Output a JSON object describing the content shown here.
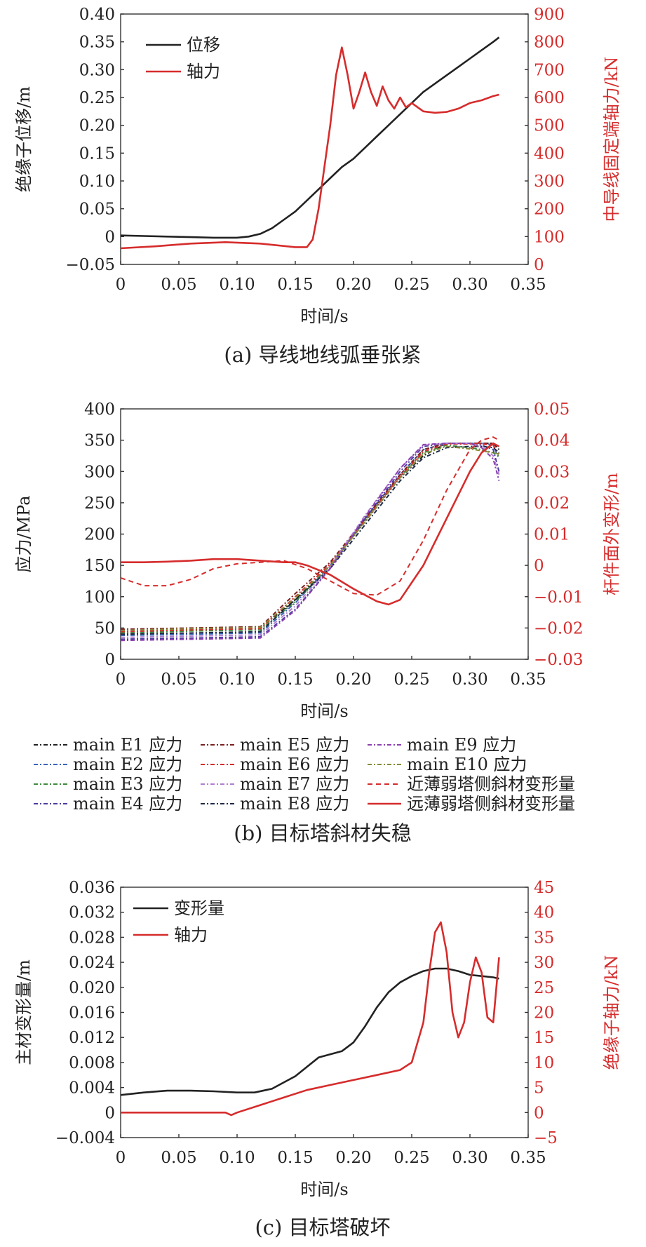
{
  "chart_data": [
    {
      "type": "line",
      "caption": "(a) 导线地线弧垂张紧",
      "xlabel": "时间/s",
      "ylabel": "绝缘子位移/m",
      "y2label": "中导线固定端轴力/kN",
      "xlim": [
        0,
        0.35
      ],
      "ylim": [
        -0.05,
        0.4
      ],
      "y2lim": [
        0,
        900
      ],
      "xticks": [
        "0",
        "0.05",
        "0.10",
        "0.15",
        "0.20",
        "0.25",
        "0.30",
        "0.35"
      ],
      "yticks": [
        "−0.05",
        "0",
        "0.05",
        "0.10",
        "0.15",
        "0.20",
        "0.25",
        "0.30",
        "0.35",
        "0.40"
      ],
      "y2ticks": [
        "0",
        "100",
        "200",
        "300",
        "400",
        "500",
        "600",
        "700",
        "800",
        "900"
      ],
      "grid": false,
      "legend_position": "top-left",
      "series": [
        {
          "name": "位移",
          "axis": "left",
          "color": "#222222",
          "dash": "",
          "x": [
            0,
            0.02,
            0.04,
            0.06,
            0.08,
            0.1,
            0.11,
            0.12,
            0.13,
            0.14,
            0.15,
            0.16,
            0.17,
            0.18,
            0.19,
            0.2,
            0.21,
            0.22,
            0.23,
            0.24,
            0.25,
            0.26,
            0.27,
            0.28,
            0.29,
            0.3,
            0.31,
            0.32,
            0.325
          ],
          "y": [
            0.002,
            0.001,
            0.0,
            -0.001,
            -0.002,
            -0.002,
            0.0,
            0.005,
            0.015,
            0.03,
            0.045,
            0.065,
            0.085,
            0.105,
            0.125,
            0.14,
            0.16,
            0.18,
            0.2,
            0.22,
            0.24,
            0.26,
            0.275,
            0.29,
            0.305,
            0.32,
            0.335,
            0.35,
            0.358
          ]
        },
        {
          "name": "轴力",
          "axis": "right",
          "color": "#d62c2c",
          "dash": "",
          "x": [
            0,
            0.03,
            0.06,
            0.09,
            0.12,
            0.15,
            0.16,
            0.165,
            0.17,
            0.175,
            0.18,
            0.185,
            0.19,
            0.195,
            0.2,
            0.205,
            0.21,
            0.215,
            0.22,
            0.225,
            0.23,
            0.235,
            0.24,
            0.245,
            0.25,
            0.26,
            0.27,
            0.28,
            0.29,
            0.3,
            0.31,
            0.32,
            0.325
          ],
          "y": [
            58,
            65,
            75,
            80,
            75,
            62,
            62,
            90,
            200,
            350,
            500,
            680,
            780,
            680,
            560,
            620,
            690,
            620,
            570,
            640,
            590,
            560,
            600,
            565,
            580,
            550,
            545,
            548,
            560,
            580,
            590,
            605,
            610
          ]
        }
      ]
    },
    {
      "type": "line",
      "caption": "(b) 目标塔斜材失稳",
      "xlabel": "时间/s",
      "ylabel": "应力/MPa",
      "y2label": "杆件面外变形/m",
      "xlim": [
        0,
        0.35
      ],
      "ylim": [
        0,
        400
      ],
      "y2lim": [
        -0.03,
        0.05
      ],
      "xticks": [
        "0",
        "0.05",
        "0.10",
        "0.15",
        "0.20",
        "0.25",
        "0.30",
        "0.35"
      ],
      "yticks": [
        "0",
        "50",
        "100",
        "150",
        "200",
        "250",
        "300",
        "350",
        "400"
      ],
      "y2ticks": [
        "−0.03",
        "−0.02",
        "−0.01",
        "0",
        "0.01",
        "0.02",
        "0.03",
        "0.04",
        "0.05"
      ],
      "grid": false,
      "legend_position": "bottom",
      "series": [
        {
          "name": "main E1 应力",
          "axis": "left",
          "color": "#222222",
          "dash": "6,3,2,3",
          "x": [
            0,
            0.06,
            0.12,
            0.15,
            0.18,
            0.21,
            0.24,
            0.26,
            0.28,
            0.3,
            0.31,
            0.32,
            0.325
          ],
          "y": [
            45,
            48,
            50,
            95,
            150,
            220,
            290,
            325,
            345,
            345,
            345,
            345,
            335
          ]
        },
        {
          "name": "main E2 应力",
          "axis": "left",
          "color": "#3a64b8",
          "dash": "6,3,2,3",
          "x": [
            0,
            0.06,
            0.12,
            0.15,
            0.18,
            0.21,
            0.24,
            0.26,
            0.28,
            0.3,
            0.31,
            0.32,
            0.325
          ],
          "y": [
            38,
            40,
            42,
            90,
            150,
            225,
            295,
            335,
            345,
            345,
            345,
            342,
            320
          ]
        },
        {
          "name": "main E3 应力",
          "axis": "left",
          "color": "#3d8a3d",
          "dash": "6,3,2,3",
          "x": [
            0,
            0.06,
            0.12,
            0.15,
            0.18,
            0.21,
            0.24,
            0.26,
            0.28,
            0.3,
            0.31,
            0.32,
            0.325
          ],
          "y": [
            42,
            45,
            47,
            92,
            148,
            222,
            292,
            330,
            342,
            338,
            335,
            330,
            325
          ]
        },
        {
          "name": "main E4 应力",
          "axis": "left",
          "color": "#4b3e9e",
          "dash": "6,3,2,3",
          "x": [
            0,
            0.06,
            0.12,
            0.15,
            0.18,
            0.21,
            0.24,
            0.26,
            0.28,
            0.3,
            0.31,
            0.32,
            0.325
          ],
          "y": [
            32,
            34,
            36,
            80,
            145,
            225,
            300,
            340,
            345,
            345,
            342,
            335,
            300
          ]
        },
        {
          "name": "main E5 应力",
          "axis": "left",
          "color": "#7a2020",
          "dash": "6,3,2,3",
          "x": [
            0,
            0.06,
            0.12,
            0.15,
            0.18,
            0.21,
            0.24,
            0.26,
            0.28,
            0.3,
            0.31,
            0.32,
            0.325
          ],
          "y": [
            48,
            50,
            52,
            105,
            155,
            225,
            295,
            335,
            345,
            345,
            345,
            345,
            340
          ]
        },
        {
          "name": "main E6 应力",
          "axis": "left",
          "color": "#d62c2c",
          "dash": "6,3,2,3",
          "x": [
            0,
            0.06,
            0.12,
            0.15,
            0.18,
            0.21,
            0.24,
            0.26,
            0.28,
            0.3,
            0.31,
            0.32,
            0.325
          ],
          "y": [
            44,
            47,
            49,
            100,
            152,
            222,
            292,
            332,
            344,
            344,
            344,
            342,
            328
          ]
        },
        {
          "name": "main E7 应力",
          "axis": "left",
          "color": "#b07fd0",
          "dash": "6,3,2,3",
          "x": [
            0,
            0.06,
            0.12,
            0.15,
            0.18,
            0.21,
            0.24,
            0.26,
            0.28,
            0.3,
            0.31,
            0.32,
            0.325
          ],
          "y": [
            35,
            37,
            39,
            85,
            148,
            230,
            305,
            342,
            345,
            345,
            340,
            325,
            295
          ]
        },
        {
          "name": "main E8 应力",
          "axis": "left",
          "color": "#1f2a44",
          "dash": "6,3,2,3",
          "x": [
            0,
            0.06,
            0.12,
            0.15,
            0.18,
            0.21,
            0.24,
            0.26,
            0.28,
            0.3,
            0.31,
            0.32,
            0.325
          ],
          "y": [
            40,
            42,
            44,
            95,
            145,
            215,
            285,
            322,
            338,
            340,
            340,
            338,
            330
          ]
        },
        {
          "name": "main E9 应力",
          "axis": "left",
          "color": "#8a3fb0",
          "dash": "6,3,2,3",
          "x": [
            0,
            0.06,
            0.12,
            0.15,
            0.18,
            0.21,
            0.24,
            0.26,
            0.28,
            0.3,
            0.31,
            0.32,
            0.325
          ],
          "y": [
            30,
            32,
            34,
            78,
            145,
            228,
            305,
            343,
            345,
            345,
            338,
            320,
            285
          ]
        },
        {
          "name": "main E10 应力",
          "axis": "left",
          "color": "#8a8a3a",
          "dash": "6,3,2,3",
          "x": [
            0,
            0.06,
            0.12,
            0.15,
            0.18,
            0.21,
            0.24,
            0.26,
            0.28,
            0.3,
            0.31,
            0.32,
            0.325
          ],
          "y": [
            46,
            49,
            51,
            98,
            150,
            220,
            290,
            328,
            340,
            336,
            333,
            330,
            328
          ]
        },
        {
          "name": "近薄弱塔侧斜材变形量",
          "axis": "right",
          "color": "#d62c2c",
          "dash": "7,5",
          "x": [
            0,
            0.02,
            0.04,
            0.06,
            0.08,
            0.1,
            0.12,
            0.14,
            0.16,
            0.18,
            0.2,
            0.22,
            0.24,
            0.26,
            0.28,
            0.3,
            0.31,
            0.32,
            0.325
          ],
          "y": [
            -0.004,
            -0.0065,
            -0.0065,
            -0.0045,
            -0.001,
            0.0005,
            0.001,
            0.0015,
            -0.001,
            -0.005,
            -0.009,
            -0.0095,
            -0.005,
            0.008,
            0.024,
            0.037,
            0.04,
            0.041,
            0.04
          ]
        },
        {
          "name": "远薄弱塔侧斜材变形量",
          "axis": "right",
          "color": "#d62c2c",
          "dash": "",
          "x": [
            0,
            0.02,
            0.04,
            0.06,
            0.08,
            0.1,
            0.12,
            0.14,
            0.15,
            0.16,
            0.18,
            0.2,
            0.22,
            0.23,
            0.24,
            0.26,
            0.28,
            0.3,
            0.31,
            0.32,
            0.325
          ],
          "y": [
            0.001,
            0.001,
            0.0012,
            0.0015,
            0.002,
            0.002,
            0.0015,
            0.001,
            0.001,
            0.0,
            -0.003,
            -0.0075,
            -0.0115,
            -0.0125,
            -0.011,
            0.0,
            0.015,
            0.03,
            0.036,
            0.039,
            0.038
          ]
        }
      ]
    },
    {
      "type": "line",
      "caption": "(c) 目标塔破坏",
      "xlabel": "时间/s",
      "ylabel": "主材变形量/m",
      "y2label": "绝缘子轴力/kN",
      "xlim": [
        0,
        0.35
      ],
      "ylim": [
        -0.004,
        0.036
      ],
      "y2lim": [
        -5,
        45
      ],
      "xticks": [
        "0",
        "0.05",
        "0.10",
        "0.15",
        "0.20",
        "0.25",
        "0.30",
        "0.35"
      ],
      "yticks": [
        "−0.004",
        "0",
        "0.004",
        "0.008",
        "0.012",
        "0.016",
        "0.020",
        "0.024",
        "0.028",
        "0.032",
        "0.036"
      ],
      "y2ticks": [
        "−5",
        "0",
        "5",
        "10",
        "15",
        "20",
        "25",
        "30",
        "35",
        "40",
        "45"
      ],
      "grid": false,
      "legend_position": "top-left",
      "series": [
        {
          "name": "变形量",
          "axis": "left",
          "color": "#222222",
          "dash": "",
          "x": [
            0,
            0.02,
            0.04,
            0.06,
            0.08,
            0.1,
            0.115,
            0.13,
            0.15,
            0.17,
            0.19,
            0.2,
            0.21,
            0.22,
            0.23,
            0.24,
            0.25,
            0.26,
            0.27,
            0.28,
            0.29,
            0.3,
            0.31,
            0.32,
            0.325
          ],
          "y": [
            0.0028,
            0.0032,
            0.0035,
            0.0035,
            0.0034,
            0.0032,
            0.0032,
            0.0038,
            0.0058,
            0.0088,
            0.0098,
            0.0112,
            0.0138,
            0.0168,
            0.0192,
            0.0208,
            0.0218,
            0.0226,
            0.023,
            0.023,
            0.0226,
            0.022,
            0.0218,
            0.0216,
            0.0214
          ]
        },
        {
          "name": "轴力",
          "axis": "right",
          "color": "#d62c2c",
          "dash": "",
          "x": [
            0,
            0.03,
            0.06,
            0.09,
            0.095,
            0.1,
            0.12,
            0.14,
            0.16,
            0.18,
            0.2,
            0.22,
            0.24,
            0.25,
            0.26,
            0.265,
            0.27,
            0.275,
            0.28,
            0.285,
            0.29,
            0.295,
            0.3,
            0.305,
            0.31,
            0.315,
            0.32,
            0.325
          ],
          "y": [
            0,
            0,
            0,
            0,
            -0.5,
            0,
            1.5,
            3,
            4.5,
            5.5,
            6.5,
            7.5,
            8.5,
            10,
            18,
            28,
            36,
            38,
            32,
            20,
            15,
            18,
            26,
            31,
            28,
            19,
            18,
            31
          ]
        }
      ]
    }
  ]
}
